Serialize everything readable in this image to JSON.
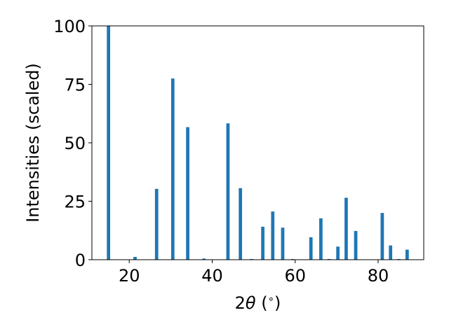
{
  "chart_data": {
    "type": "bar",
    "xlabel_prefix": "2",
    "xlabel_theta": "θ",
    "xlabel_unit": " (",
    "xlabel_degree": "∘",
    "xlabel_close": ")",
    "ylabel": "Intensities (scaled)",
    "xlim": [
      11,
      91
    ],
    "ylim": [
      0,
      100
    ],
    "xticks": [
      20,
      40,
      60,
      80
    ],
    "yticks": [
      0,
      25,
      50,
      75,
      100
    ],
    "bar_width": 0.8,
    "bar_color": "#1f77b4",
    "grid": false,
    "x": [
      15.0,
      21.4,
      26.6,
      30.5,
      34.1,
      38.0,
      43.8,
      46.8,
      49.5,
      52.2,
      54.6,
      57.0,
      59.4,
      63.8,
      66.2,
      68.2,
      70.3,
      72.3,
      74.6,
      81.0,
      83.0,
      85.0,
      87.0
    ],
    "values": [
      100.0,
      1.2,
      30.3,
      77.5,
      56.7,
      0.5,
      58.3,
      30.6,
      0.3,
      14.1,
      20.6,
      13.7,
      0.3,
      9.6,
      17.7,
      0.3,
      5.6,
      26.5,
      12.3,
      20.0,
      6.1,
      0.3,
      4.3
    ]
  }
}
